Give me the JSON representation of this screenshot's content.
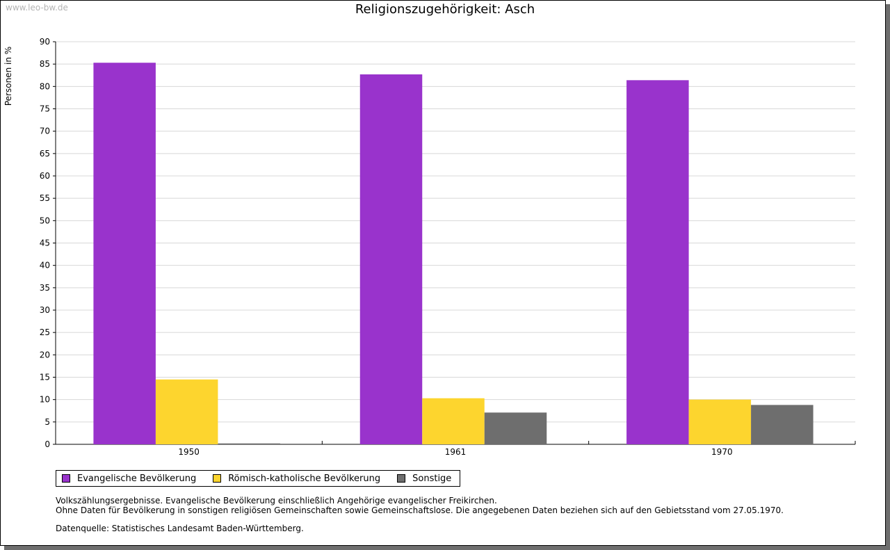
{
  "watermark": "www.leo-bw.de",
  "chart_data": {
    "type": "bar",
    "title": "Religionszugehörigkeit: Asch",
    "xlabel": "",
    "ylabel": "Personen in %",
    "ylim": [
      0,
      90
    ],
    "ytick_step": 5,
    "grid": true,
    "legend_position": "bottom-left",
    "categories": [
      "1950",
      "1961",
      "1970"
    ],
    "series": [
      {
        "name": "Evangelische Bevölkerung",
        "color": "#9933cc",
        "values": [
          85.3,
          82.7,
          81.4
        ]
      },
      {
        "name": "Römisch-katholische Bevölkerung",
        "color": "#fdd52e",
        "values": [
          14.5,
          10.3,
          10.0
        ]
      },
      {
        "name": "Sonstige",
        "color": "#6e6e6e",
        "values": [
          0.2,
          7.1,
          8.8
        ]
      }
    ]
  },
  "notes": {
    "line1": "Volkszählungsergebnisse. Evangelische Bevölkerung einschließlich Angehörige evangelischer Freikirchen.",
    "line2": "Ohne Daten für Bevölkerung in sonstigen religiösen Gemeinschaften sowie Gemeinschaftslose. Die angegebenen Daten beziehen sich auf den Gebietsstand vom 27.05.1970.",
    "source": "Datenquelle: Statistisches Landesamt Baden-Württemberg."
  }
}
